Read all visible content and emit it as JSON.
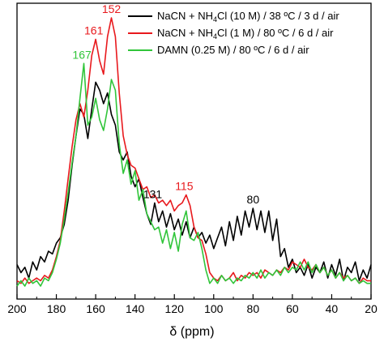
{
  "chart_data": {
    "type": "line",
    "title": "",
    "xlabel": "δ (ppm)",
    "ylabel": "",
    "xlim": [
      200,
      20
    ],
    "x_reversed": true,
    "grid": false,
    "legend_position": "top-right",
    "x_ticks": [
      200,
      180,
      160,
      140,
      120,
      100,
      80,
      60,
      40,
      20
    ],
    "series": [
      {
        "name_parts": [
          "NaCN + NH",
          "4",
          "Cl (10 M) / 38 ºC / 3 d / air"
        ],
        "color": "#000000",
        "points": [
          [
            200,
            0.08
          ],
          [
            198,
            0.05
          ],
          [
            196,
            0.07
          ],
          [
            194,
            0.03
          ],
          [
            192,
            0.09
          ],
          [
            190,
            0.06
          ],
          [
            188,
            0.11
          ],
          [
            186,
            0.09
          ],
          [
            184,
            0.13
          ],
          [
            182,
            0.12
          ],
          [
            180,
            0.16
          ],
          [
            178,
            0.18
          ],
          [
            176,
            0.23
          ],
          [
            174,
            0.32
          ],
          [
            172,
            0.45
          ],
          [
            170,
            0.56
          ],
          [
            168,
            0.66
          ],
          [
            166,
            0.64
          ],
          [
            164,
            0.55
          ],
          [
            162,
            0.66
          ],
          [
            160,
            0.76
          ],
          [
            158,
            0.73
          ],
          [
            156,
            0.68
          ],
          [
            154,
            0.72
          ],
          [
            152,
            0.64
          ],
          [
            150,
            0.6
          ],
          [
            148,
            0.5
          ],
          [
            146,
            0.47
          ],
          [
            144,
            0.5
          ],
          [
            142,
            0.41
          ],
          [
            140,
            0.37
          ],
          [
            138,
            0.4
          ],
          [
            136,
            0.33
          ],
          [
            134,
            0.27
          ],
          [
            132,
            0.23
          ],
          [
            130,
            0.31
          ],
          [
            128,
            0.24
          ],
          [
            126,
            0.28
          ],
          [
            124,
            0.22
          ],
          [
            122,
            0.27
          ],
          [
            120,
            0.21
          ],
          [
            118,
            0.25
          ],
          [
            116,
            0.19
          ],
          [
            114,
            0.24
          ],
          [
            112,
            0.18
          ],
          [
            110,
            0.22
          ],
          [
            108,
            0.18
          ],
          [
            106,
            0.2
          ],
          [
            104,
            0.16
          ],
          [
            102,
            0.19
          ],
          [
            100,
            0.14
          ],
          [
            98,
            0.18
          ],
          [
            96,
            0.22
          ],
          [
            94,
            0.15
          ],
          [
            92,
            0.24
          ],
          [
            90,
            0.17
          ],
          [
            88,
            0.26
          ],
          [
            86,
            0.19
          ],
          [
            84,
            0.28
          ],
          [
            82,
            0.22
          ],
          [
            80,
            0.29
          ],
          [
            78,
            0.21
          ],
          [
            76,
            0.28
          ],
          [
            74,
            0.2
          ],
          [
            72,
            0.28
          ],
          [
            70,
            0.17
          ],
          [
            68,
            0.25
          ],
          [
            66,
            0.11
          ],
          [
            64,
            0.14
          ],
          [
            62,
            0.07
          ],
          [
            60,
            0.1
          ],
          [
            58,
            0.05
          ],
          [
            56,
            0.07
          ],
          [
            54,
            0.04
          ],
          [
            52,
            0.08
          ],
          [
            50,
            0.03
          ],
          [
            48,
            0.07
          ],
          [
            46,
            0.05
          ],
          [
            44,
            0.09
          ],
          [
            42,
            0.03
          ],
          [
            40,
            0.08
          ],
          [
            38,
            0.04
          ],
          [
            36,
            0.1
          ],
          [
            34,
            0.02
          ],
          [
            32,
            0.07
          ],
          [
            30,
            0.05
          ],
          [
            28,
            0.09
          ],
          [
            26,
            0.02
          ],
          [
            24,
            0.06
          ],
          [
            22,
            0.03
          ],
          [
            20,
            0.08
          ]
        ]
      },
      {
        "name_parts": [
          "NaCN + NH",
          "4",
          "Cl (1 M) / 80 ºC / 6 d / air"
        ],
        "color": "#e8191d",
        "points": [
          [
            200,
            0.02
          ],
          [
            198,
            0.01
          ],
          [
            196,
            0.03
          ],
          [
            194,
            0.01
          ],
          [
            192,
            0.02
          ],
          [
            190,
            0.03
          ],
          [
            188,
            0.02
          ],
          [
            186,
            0.04
          ],
          [
            184,
            0.03
          ],
          [
            182,
            0.06
          ],
          [
            180,
            0.11
          ],
          [
            178,
            0.17
          ],
          [
            176,
            0.28
          ],
          [
            174,
            0.4
          ],
          [
            172,
            0.52
          ],
          [
            170,
            0.62
          ],
          [
            168,
            0.68
          ],
          [
            166,
            0.63
          ],
          [
            164,
            0.73
          ],
          [
            162,
            0.86
          ],
          [
            160,
            0.92
          ],
          [
            158,
            0.84
          ],
          [
            156,
            0.79
          ],
          [
            154,
            0.93
          ],
          [
            152,
            1.0
          ],
          [
            150,
            0.93
          ],
          [
            148,
            0.72
          ],
          [
            146,
            0.56
          ],
          [
            144,
            0.49
          ],
          [
            142,
            0.45
          ],
          [
            140,
            0.44
          ],
          [
            138,
            0.4
          ],
          [
            136,
            0.36
          ],
          [
            134,
            0.37
          ],
          [
            132,
            0.33
          ],
          [
            130,
            0.34
          ],
          [
            128,
            0.31
          ],
          [
            126,
            0.32
          ],
          [
            124,
            0.3
          ],
          [
            122,
            0.32
          ],
          [
            120,
            0.28
          ],
          [
            118,
            0.3
          ],
          [
            116,
            0.31
          ],
          [
            114,
            0.34
          ],
          [
            112,
            0.3
          ],
          [
            110,
            0.22
          ],
          [
            108,
            0.18
          ],
          [
            106,
            0.17
          ],
          [
            104,
            0.12
          ],
          [
            102,
            0.05
          ],
          [
            100,
            0.03
          ],
          [
            98,
            0.02
          ],
          [
            96,
            0.04
          ],
          [
            94,
            0.02
          ],
          [
            92,
            0.03
          ],
          [
            90,
            0.05
          ],
          [
            88,
            0.02
          ],
          [
            86,
            0.04
          ],
          [
            84,
            0.03
          ],
          [
            82,
            0.05
          ],
          [
            80,
            0.04
          ],
          [
            78,
            0.05
          ],
          [
            76,
            0.03
          ],
          [
            74,
            0.06
          ],
          [
            72,
            0.05
          ],
          [
            70,
            0.04
          ],
          [
            68,
            0.06
          ],
          [
            66,
            0.05
          ],
          [
            64,
            0.07
          ],
          [
            62,
            0.06
          ],
          [
            60,
            0.09
          ],
          [
            58,
            0.08
          ],
          [
            56,
            0.07
          ],
          [
            54,
            0.1
          ],
          [
            52,
            0.07
          ],
          [
            50,
            0.06
          ],
          [
            48,
            0.08
          ],
          [
            46,
            0.05
          ],
          [
            44,
            0.07
          ],
          [
            42,
            0.04
          ],
          [
            40,
            0.06
          ],
          [
            38,
            0.03
          ],
          [
            36,
            0.05
          ],
          [
            34,
            0.03
          ],
          [
            32,
            0.04
          ],
          [
            30,
            0.02
          ],
          [
            28,
            0.03
          ],
          [
            26,
            0.01
          ],
          [
            24,
            0.03
          ],
          [
            22,
            0.02
          ],
          [
            20,
            0.02
          ]
        ]
      },
      {
        "name_parts": [
          "DAMN (0.25 M) / 80 ºC / 6 d / air"
        ],
        "color": "#31c53a",
        "points": [
          [
            200,
            0.0
          ],
          [
            198,
            0.02
          ],
          [
            196,
            0.0
          ],
          [
            194,
            0.03
          ],
          [
            192,
            0.01
          ],
          [
            190,
            0.02
          ],
          [
            188,
            0.0
          ],
          [
            186,
            0.03
          ],
          [
            184,
            0.02
          ],
          [
            182,
            0.05
          ],
          [
            180,
            0.1
          ],
          [
            178,
            0.16
          ],
          [
            176,
            0.25
          ],
          [
            174,
            0.35
          ],
          [
            172,
            0.46
          ],
          [
            170,
            0.56
          ],
          [
            168,
            0.7
          ],
          [
            166,
            0.83
          ],
          [
            164,
            0.6
          ],
          [
            162,
            0.63
          ],
          [
            160,
            0.7
          ],
          [
            158,
            0.62
          ],
          [
            156,
            0.58
          ],
          [
            154,
            0.66
          ],
          [
            152,
            0.77
          ],
          [
            150,
            0.73
          ],
          [
            148,
            0.53
          ],
          [
            146,
            0.42
          ],
          [
            144,
            0.47
          ],
          [
            142,
            0.38
          ],
          [
            140,
            0.43
          ],
          [
            138,
            0.32
          ],
          [
            136,
            0.36
          ],
          [
            134,
            0.27
          ],
          [
            132,
            0.24
          ],
          [
            130,
            0.21
          ],
          [
            128,
            0.22
          ],
          [
            126,
            0.16
          ],
          [
            124,
            0.21
          ],
          [
            122,
            0.14
          ],
          [
            120,
            0.2
          ],
          [
            118,
            0.13
          ],
          [
            116,
            0.23
          ],
          [
            114,
            0.28
          ],
          [
            112,
            0.18
          ],
          [
            110,
            0.17
          ],
          [
            108,
            0.2
          ],
          [
            106,
            0.14
          ],
          [
            104,
            0.06
          ],
          [
            102,
            0.01
          ],
          [
            100,
            0.03
          ],
          [
            98,
            0.01
          ],
          [
            96,
            0.04
          ],
          [
            94,
            0.02
          ],
          [
            92,
            0.03
          ],
          [
            90,
            0.01
          ],
          [
            88,
            0.03
          ],
          [
            86,
            0.02
          ],
          [
            84,
            0.04
          ],
          [
            82,
            0.03
          ],
          [
            80,
            0.05
          ],
          [
            78,
            0.03
          ],
          [
            76,
            0.06
          ],
          [
            74,
            0.03
          ],
          [
            72,
            0.05
          ],
          [
            70,
            0.04
          ],
          [
            68,
            0.06
          ],
          [
            66,
            0.04
          ],
          [
            64,
            0.07
          ],
          [
            62,
            0.05
          ],
          [
            60,
            0.07
          ],
          [
            58,
            0.06
          ],
          [
            56,
            0.09
          ],
          [
            54,
            0.06
          ],
          [
            52,
            0.09
          ],
          [
            50,
            0.05
          ],
          [
            48,
            0.08
          ],
          [
            46,
            0.05
          ],
          [
            44,
            0.07
          ],
          [
            42,
            0.04
          ],
          [
            40,
            0.06
          ],
          [
            38,
            0.03
          ],
          [
            36,
            0.05
          ],
          [
            34,
            0.02
          ],
          [
            32,
            0.04
          ],
          [
            30,
            0.02
          ],
          [
            28,
            0.03
          ],
          [
            26,
            0.01
          ],
          [
            24,
            0.02
          ],
          [
            22,
            0.01
          ],
          [
            20,
            0.01
          ]
        ]
      }
    ],
    "annotations": [
      {
        "text": "152",
        "x": 152,
        "y": 1.0,
        "color": "#e8191d"
      },
      {
        "text": "161",
        "x": 161,
        "y": 0.92,
        "color": "#e8191d"
      },
      {
        "text": "167",
        "x": 167,
        "y": 0.83,
        "color": "#31c53a"
      },
      {
        "text": "115",
        "x": 115,
        "y": 0.34,
        "color": "#e8191d"
      },
      {
        "text": "131",
        "x": 131,
        "y": 0.31,
        "color": "#000000"
      },
      {
        "text": "80",
        "x": 80,
        "y": 0.29,
        "color": "#000000"
      }
    ]
  }
}
